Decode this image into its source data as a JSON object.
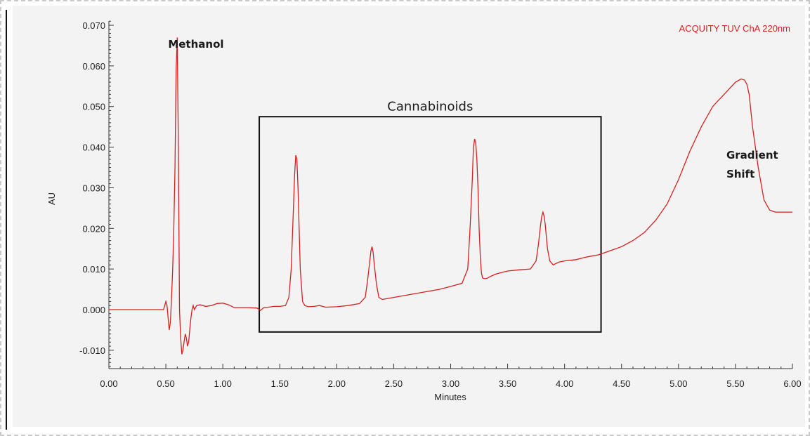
{
  "chart_data": {
    "type": "line",
    "detector_label": "ACQUITY TUV ChA 220nm",
    "xlabel": "Minutes",
    "ylabel": "AU",
    "xlim": [
      0.0,
      6.0
    ],
    "ylim": [
      -0.015,
      0.071
    ],
    "x_ticks": [
      "0.00",
      "0.50",
      "1.00",
      "1.50",
      "2.00",
      "2.50",
      "3.00",
      "3.50",
      "4.00",
      "4.50",
      "5.00",
      "5.50",
      "6.00"
    ],
    "y_ticks": [
      "-0.010",
      "0.000",
      "0.010",
      "0.020",
      "0.030",
      "0.040",
      "0.050",
      "0.060",
      "0.070"
    ],
    "line_color": "#d62020",
    "series": [
      {
        "x": [
          0.0,
          0.3,
          0.48,
          0.5,
          0.51,
          0.52,
          0.53,
          0.54,
          0.55,
          0.56,
          0.57,
          0.58,
          0.59,
          0.6,
          0.61,
          0.62,
          0.63,
          0.64,
          0.65,
          0.66,
          0.67,
          0.68,
          0.69,
          0.7,
          0.71,
          0.72,
          0.73,
          0.74,
          0.75,
          0.77,
          0.8,
          0.85,
          0.9,
          0.95,
          1.0,
          1.05,
          1.1,
          1.2,
          1.3,
          1.33,
          1.36,
          1.4,
          1.45,
          1.5,
          1.55,
          1.58,
          1.6,
          1.62,
          1.63,
          1.64,
          1.65,
          1.66,
          1.67,
          1.68,
          1.7,
          1.72,
          1.75,
          1.8,
          1.85,
          1.9,
          2.0,
          2.1,
          2.2,
          2.25,
          2.27,
          2.29,
          2.3,
          2.31,
          2.32,
          2.33,
          2.35,
          2.37,
          2.4,
          2.5,
          2.7,
          2.9,
          3.0,
          3.1,
          3.15,
          3.17,
          3.19,
          3.2,
          3.21,
          3.22,
          3.23,
          3.24,
          3.25,
          3.26,
          3.27,
          3.28,
          3.3,
          3.32,
          3.35,
          3.4,
          3.5,
          3.6,
          3.7,
          3.75,
          3.77,
          3.79,
          3.8,
          3.81,
          3.82,
          3.83,
          3.84,
          3.85,
          3.87,
          3.9,
          3.92,
          3.95,
          4.0,
          4.1,
          4.2,
          4.3,
          4.4,
          4.5,
          4.6,
          4.7,
          4.8,
          4.9,
          5.0,
          5.1,
          5.2,
          5.3,
          5.4,
          5.5,
          5.55,
          5.58,
          5.6,
          5.62,
          5.65,
          5.7,
          5.75,
          5.8,
          5.85,
          5.9,
          6.0
        ],
        "y": [
          0.0,
          0.0,
          0.0,
          0.002,
          0.001,
          -0.002,
          -0.005,
          -0.003,
          0.003,
          0.01,
          0.02,
          0.035,
          0.059,
          0.067,
          0.04,
          0.0,
          -0.007,
          -0.011,
          -0.01,
          -0.008,
          -0.006,
          -0.007,
          -0.009,
          -0.008,
          -0.005,
          -0.002,
          0.0,
          0.001,
          0.0,
          0.001,
          0.0012,
          0.0008,
          0.001,
          0.0015,
          0.0016,
          0.0012,
          0.0005,
          0.0005,
          0.0004,
          -0.0002,
          0.0005,
          0.0006,
          0.0008,
          0.0008,
          0.001,
          0.003,
          0.01,
          0.025,
          0.033,
          0.038,
          0.037,
          0.03,
          0.02,
          0.01,
          0.002,
          0.001,
          0.0007,
          0.0008,
          0.001,
          0.0006,
          0.0007,
          0.001,
          0.0015,
          0.003,
          0.007,
          0.012,
          0.0145,
          0.0155,
          0.014,
          0.011,
          0.006,
          0.003,
          0.0025,
          0.003,
          0.004,
          0.005,
          0.0057,
          0.0065,
          0.01,
          0.02,
          0.032,
          0.04,
          0.042,
          0.041,
          0.037,
          0.03,
          0.02,
          0.013,
          0.009,
          0.0078,
          0.0076,
          0.0077,
          0.0082,
          0.0088,
          0.0095,
          0.0098,
          0.01,
          0.012,
          0.016,
          0.021,
          0.023,
          0.024,
          0.023,
          0.021,
          0.018,
          0.015,
          0.012,
          0.011,
          0.0113,
          0.0117,
          0.012,
          0.0123,
          0.013,
          0.0135,
          0.0145,
          0.0155,
          0.017,
          0.019,
          0.022,
          0.026,
          0.032,
          0.039,
          0.045,
          0.05,
          0.053,
          0.056,
          0.0568,
          0.0565,
          0.0555,
          0.053,
          0.045,
          0.035,
          0.027,
          0.0245,
          0.024,
          0.024,
          0.024
        ]
      }
    ],
    "annotations": [
      {
        "id": "methanol",
        "text": "Methanol",
        "x": 0.52,
        "y": 0.0645
      },
      {
        "id": "cannabinoids",
        "text": "Cannabinoids",
        "x": 2.82,
        "y": 0.049
      },
      {
        "id": "gradient-1",
        "text": "Gradient",
        "x": 5.42,
        "y": 0.0372
      },
      {
        "id": "gradient-2",
        "text": "Shift",
        "x": 5.42,
        "y": 0.0325
      }
    ],
    "highlight_box": {
      "x0": 1.32,
      "x1": 4.32,
      "y0": -0.0055,
      "y1": 0.0475
    }
  }
}
